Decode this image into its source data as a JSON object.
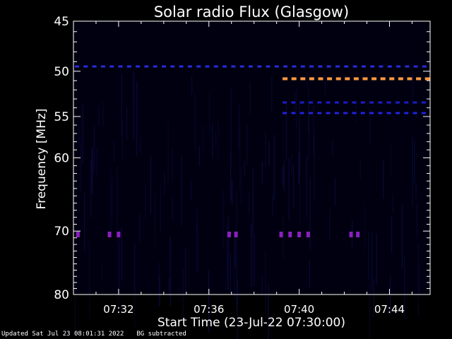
{
  "chart_data": {
    "type": "heatmap",
    "title": "Solar radio Flux (Glasgow)",
    "xlabel": "Start Time (23-Jul-22 07:30:00)",
    "ylabel": "Frequency [MHz]",
    "x_unit": "minutes after 07:30:00",
    "xlim": [
      0,
      15.8
    ],
    "ylim": [
      45,
      80
    ],
    "x_ticks": [
      {
        "value": 2,
        "label": "07:32"
      },
      {
        "value": 6,
        "label": "07:36"
      },
      {
        "value": 10,
        "label": "07:40"
      },
      {
        "value": 14,
        "label": "07:44"
      }
    ],
    "y_ticks": [
      {
        "value": 45,
        "label": "45"
      },
      {
        "value": 50,
        "label": "50"
      },
      {
        "value": 55,
        "label": "55"
      },
      {
        "value": 60,
        "label": "60"
      },
      {
        "value": 70,
        "label": "70"
      },
      {
        "value": 80,
        "label": "80"
      }
    ],
    "background_color": "#000010",
    "signals": [
      {
        "freq_mhz": 49.5,
        "t_start": 0,
        "t_end": 15.8,
        "color": "#2a2ae0",
        "style": "dashed"
      },
      {
        "freq_mhz": 50.8,
        "t_start": 9.2,
        "t_end": 15.8,
        "color": "#ff9a40",
        "style": "dashed"
      },
      {
        "freq_mhz": 53.4,
        "t_start": 9.2,
        "t_end": 15.8,
        "color": "#1c1cc8",
        "style": "dashed"
      },
      {
        "freq_mhz": 54.6,
        "t_start": 9.2,
        "t_end": 15.8,
        "color": "#2222e0",
        "style": "dashed"
      },
      {
        "freq_mhz": 70.5,
        "t_start": 0,
        "t_end": 15.8,
        "color": "#8a20c0",
        "style": "spots",
        "spots": [
          0.2,
          1.6,
          2.0,
          6.9,
          7.2,
          9.2,
          9.6,
          10.0,
          10.4,
          12.3,
          12.6
        ]
      }
    ]
  },
  "footer": {
    "updated": "Updated Sat Jul 23 08:01:31 2022",
    "bg": "BG subtracted"
  }
}
